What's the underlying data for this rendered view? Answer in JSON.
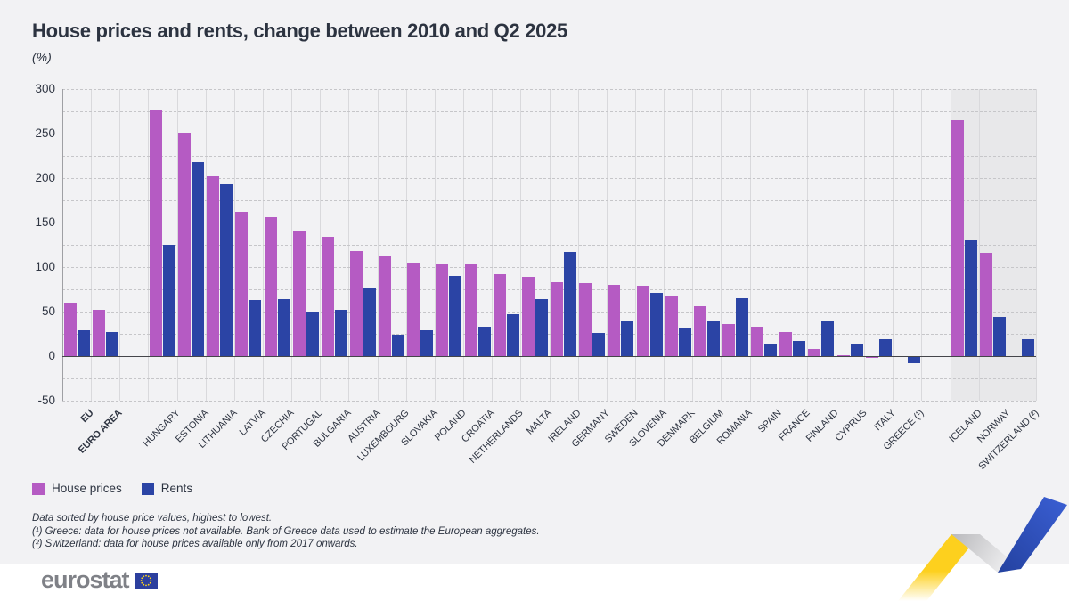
{
  "header": {
    "title": "House prices and rents, change between 2010 and Q2 2025",
    "unit_label": "(%)"
  },
  "legend": {
    "items": [
      {
        "label": "House prices",
        "color": "#b55bc3"
      },
      {
        "label": "Rents",
        "color": "#2b44a5"
      }
    ]
  },
  "footnotes": {
    "lines": [
      "Data sorted by house price values, highest to lowest.",
      "(¹) Greece: data for house prices not available. Bank of Greece data used to estimate the European aggregates.",
      "(²) Switzerland: data for house prices available only from 2017 onwards."
    ]
  },
  "footer": {
    "logo_text": "eurostat"
  },
  "chart_data": {
    "type": "bar",
    "title": "House prices and rents, change between 2010 and Q2 2025",
    "ylabel": "(%)",
    "ylim": [
      -50,
      300
    ],
    "yticks_labeled": [
      300,
      250,
      200,
      150,
      100,
      50,
      0,
      -50
    ],
    "grid_step": 25,
    "legend_position": "bottom-left",
    "grid": {
      "horizontal": "dashed",
      "vertical": "category separators",
      "zero_line": true
    },
    "highlight_band_color": "#e8e8ea",
    "series": [
      {
        "name": "House prices",
        "color": "#b55bc3"
      },
      {
        "name": "Rents",
        "color": "#2b44a5"
      }
    ],
    "categories": [
      {
        "label": "EU",
        "group": "aggregate",
        "bold": true,
        "house_prices": 60,
        "rents": 29
      },
      {
        "label": "EURO AREA",
        "group": "aggregate",
        "bold": true,
        "house_prices": 52,
        "rents": 27
      },
      {
        "label": "HUNGARY",
        "group": "eu",
        "house_prices": 277,
        "rents": 125
      },
      {
        "label": "ESTONIA",
        "group": "eu",
        "house_prices": 251,
        "rents": 218
      },
      {
        "label": "LITHUANIA",
        "group": "eu",
        "house_prices": 202,
        "rents": 193
      },
      {
        "label": "LATVIA",
        "group": "eu",
        "house_prices": 162,
        "rents": 63
      },
      {
        "label": "CZECHIA",
        "group": "eu",
        "house_prices": 156,
        "rents": 64
      },
      {
        "label": "PORTUGAL",
        "group": "eu",
        "house_prices": 141,
        "rents": 50
      },
      {
        "label": "BULGARIA",
        "group": "eu",
        "house_prices": 134,
        "rents": 52
      },
      {
        "label": "AUSTRIA",
        "group": "eu",
        "house_prices": 118,
        "rents": 76
      },
      {
        "label": "LUXEMBOURG",
        "group": "eu",
        "house_prices": 112,
        "rents": 24
      },
      {
        "label": "SLOVAKIA",
        "group": "eu",
        "house_prices": 105,
        "rents": 29
      },
      {
        "label": "POLAND",
        "group": "eu",
        "house_prices": 104,
        "rents": 90
      },
      {
        "label": "CROATIA",
        "group": "eu",
        "house_prices": 103,
        "rents": 33
      },
      {
        "label": "NETHERLANDS",
        "group": "eu",
        "house_prices": 92,
        "rents": 47
      },
      {
        "label": "MALTA",
        "group": "eu",
        "house_prices": 89,
        "rents": 64
      },
      {
        "label": "IRELAND",
        "group": "eu",
        "house_prices": 83,
        "rents": 117
      },
      {
        "label": "GERMANY",
        "group": "eu",
        "house_prices": 82,
        "rents": 26
      },
      {
        "label": "SWEDEN",
        "group": "eu",
        "house_prices": 80,
        "rents": 40
      },
      {
        "label": "SLOVENIA",
        "group": "eu",
        "house_prices": 79,
        "rents": 71
      },
      {
        "label": "DENMARK",
        "group": "eu",
        "house_prices": 67,
        "rents": 32
      },
      {
        "label": "BELGIUM",
        "group": "eu",
        "house_prices": 56,
        "rents": 39
      },
      {
        "label": "ROMANIA",
        "group": "eu",
        "house_prices": 36,
        "rents": 65
      },
      {
        "label": "SPAIN",
        "group": "eu",
        "house_prices": 33,
        "rents": 14
      },
      {
        "label": "FRANCE",
        "group": "eu",
        "house_prices": 27,
        "rents": 17
      },
      {
        "label": "FINLAND",
        "group": "eu",
        "house_prices": 8,
        "rents": 39
      },
      {
        "label": "CYPRUS",
        "group": "eu",
        "house_prices": 1,
        "rents": 14
      },
      {
        "label": "ITALY",
        "group": "eu",
        "house_prices": -2,
        "rents": 19
      },
      {
        "label": "GREECE (¹)",
        "group": "eu",
        "house_prices": null,
        "rents": -8
      },
      {
        "label": "ICELAND",
        "group": "efta",
        "house_prices": 265,
        "rents": 130
      },
      {
        "label": "NORWAY",
        "group": "efta",
        "house_prices": 116,
        "rents": 44
      },
      {
        "label": "SWITZERLAND (²)",
        "group": "efta",
        "house_prices": null,
        "rents": 19
      }
    ]
  }
}
